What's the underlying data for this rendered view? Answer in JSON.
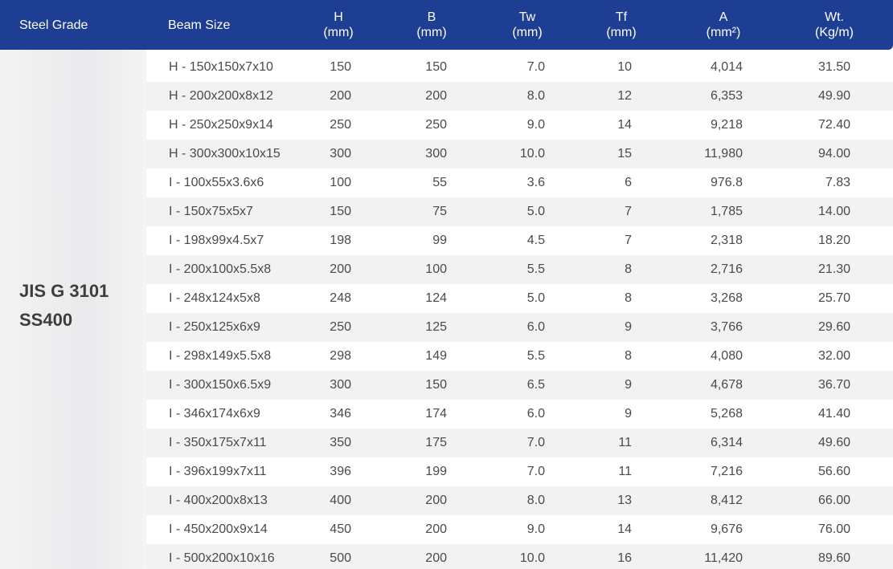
{
  "header": {
    "columns": [
      [
        "Steel Grade"
      ],
      [
        "Beam Size"
      ],
      [
        "H",
        "(mm)"
      ],
      [
        "B",
        "(mm)"
      ],
      [
        "Tw",
        "(mm)"
      ],
      [
        "Tf",
        "(mm)"
      ],
      [
        "A",
        "(mm²)"
      ],
      [
        "Wt.",
        "(Kg/m)"
      ]
    ]
  },
  "steel_grade": [
    "JIS G 3101",
    "SS400"
  ],
  "table": {
    "rows": [
      [
        "H - 150x150x7x10",
        "150",
        "150",
        "7.0",
        "10",
        "4,014",
        "31.50"
      ],
      [
        "H - 200x200x8x12",
        "200",
        "200",
        "8.0",
        "12",
        "6,353",
        "49.90"
      ],
      [
        "H - 250x250x9x14",
        "250",
        "250",
        "9.0",
        "14",
        "9,218",
        "72.40"
      ],
      [
        "H - 300x300x10x15",
        "300",
        "300",
        "10.0",
        "15",
        "11,980",
        "94.00"
      ],
      [
        "I - 100x55x3.6x6",
        "100",
        "55",
        "3.6",
        "6",
        "976.8",
        "7.83"
      ],
      [
        "I - 150x75x5x7",
        "150",
        "75",
        "5.0",
        "7",
        "1,785",
        "14.00"
      ],
      [
        "I - 198x99x4.5x7",
        "198",
        "99",
        "4.5",
        "7",
        "2,318",
        "18.20"
      ],
      [
        "I - 200x100x5.5x8",
        "200",
        "100",
        "5.5",
        "8",
        "2,716",
        "21.30"
      ],
      [
        "I - 248x124x5x8",
        "248",
        "124",
        "5.0",
        "8",
        "3,268",
        "25.70"
      ],
      [
        "I - 250x125x6x9",
        "250",
        "125",
        "6.0",
        "9",
        "3,766",
        "29.60"
      ],
      [
        "I - 298x149x5.5x8",
        "298",
        "149",
        "5.5",
        "8",
        "4,080",
        "32.00"
      ],
      [
        "I - 300x150x6.5x9",
        "300",
        "150",
        "6.5",
        "9",
        "4,678",
        "36.70"
      ],
      [
        "I - 346x174x6x9",
        "346",
        "174",
        "6.0",
        "9",
        "5,268",
        "41.40"
      ],
      [
        "I - 350x175x7x11",
        "350",
        "175",
        "7.0",
        "11",
        "6,314",
        "49.60"
      ],
      [
        "I - 396x199x7x11",
        "396",
        "199",
        "7.0",
        "11",
        "7,216",
        "56.60"
      ],
      [
        "I - 400x200x8x13",
        "400",
        "200",
        "8.0",
        "13",
        "8,412",
        "66.00"
      ],
      [
        "I - 450x200x9x14",
        "450",
        "200",
        "9.0",
        "14",
        "9,676",
        "76.00"
      ],
      [
        "I - 500x200x10x16",
        "500",
        "200",
        "10.0",
        "16",
        "11,420",
        "89.60"
      ]
    ]
  }
}
